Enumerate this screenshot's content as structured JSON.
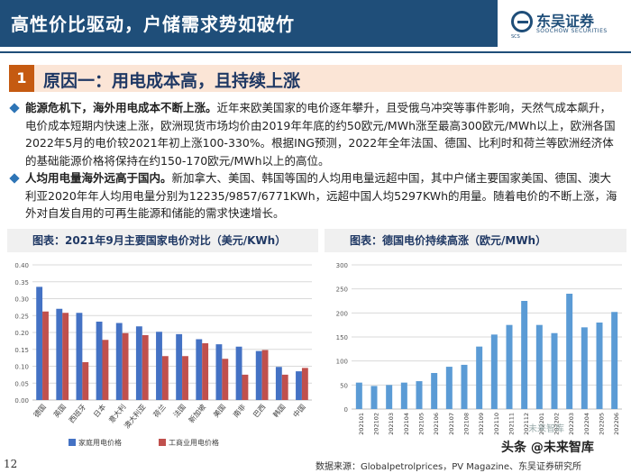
{
  "header": {
    "title": "高性价比驱动，户储需求势如破竹",
    "logo_name": "东吴证券",
    "logo_en": "SOOCHOW SECURITIES",
    "logo_mark": "SCS"
  },
  "section": {
    "number": "1",
    "title": "原因一：用电成本高，且持续上涨"
  },
  "bullets": [
    {
      "lead": "能源危机下，海外用电成本不断上涨。",
      "body": "近年来欧美国家的电价逐年攀升，且受俄乌冲突等事件影响，天然气成本飙升，电价成本短期内快速上涨，欧洲现货市场均价由2019年年底的约50欧元/MWh涨至最高300欧元/MWh以上，欧洲各国2022年5月的电价较2021年初上涨100-330%。根据ING预测，2022年全年法国、德国、比利时和荷兰等欧洲经济体的基础能源价格将保持在约150-170欧元/MWh以上的高位。"
    },
    {
      "lead": "人均用电量海外远高于国内。",
      "body": "新加拿大、美国、韩国等国的人均用电量远超中国，其中户储主要国家美国、德国、澳大利亚2020年年人均用电量分别为12235/9857/6771KWh，远超中国人均5297KWh的用量。随着电价的不断上涨，海外对自发自用的可再生能源和储能的需求快速增长。"
    }
  ],
  "chart_data": [
    {
      "type": "bar",
      "title": "图表：2021年9月主要国家电价对比（美元/KWh）",
      "categories": [
        "德国",
        "英国",
        "西班牙",
        "日本",
        "意大利",
        "澳大利亚",
        "荷兰",
        "法国",
        "新加坡",
        "美国",
        "南非",
        "巴西",
        "韩国",
        "中国"
      ],
      "series": [
        {
          "name": "家庭用电价格",
          "color": "#4472c4",
          "values": [
            0.335,
            0.27,
            0.258,
            0.232,
            0.228,
            0.218,
            0.202,
            0.195,
            0.18,
            0.165,
            0.158,
            0.145,
            0.098,
            0.085
          ]
        },
        {
          "name": "工商业用电价格",
          "color": "#c0504d",
          "values": [
            0.262,
            0.258,
            0.112,
            0.178,
            0.198,
            0.192,
            0.13,
            0.13,
            0.168,
            0.122,
            0.075,
            0.148,
            0.075,
            0.095
          ]
        }
      ],
      "ylim": [
        0,
        0.4
      ],
      "yticks": [
        "0.00",
        "0.05",
        "0.10",
        "0.15",
        "0.20",
        "0.25",
        "0.30",
        "0.35",
        "0.40"
      ],
      "grid": true,
      "legend": "bottom"
    },
    {
      "type": "bar",
      "title": "图表：德国电价持续高涨（欧元/MWh）",
      "categories": [
        "202101",
        "202102",
        "202103",
        "202104",
        "202105",
        "202106",
        "202107",
        "202108",
        "202109",
        "202110",
        "202111",
        "202112",
        "202201",
        "202202",
        "202203",
        "202204",
        "202205",
        "202206"
      ],
      "series": [
        {
          "name": "",
          "color": "#5b9bd5",
          "values": [
            55,
            48,
            50,
            55,
            58,
            75,
            88,
            92,
            130,
            155,
            175,
            225,
            175,
            158,
            240,
            170,
            180,
            202
          ]
        }
      ],
      "ylim": [
        0,
        300
      ],
      "yticks": [
        "0",
        "50",
        "100",
        "150",
        "200",
        "250",
        "300"
      ],
      "grid": true,
      "legend": "none"
    }
  ],
  "footer": {
    "page_number": "12",
    "source": "数据来源：Globalpetrolprices，PV Magazine、东吴证券研究所",
    "watermark": "头条 @未来智库",
    "watermark_small": "未来智库"
  }
}
